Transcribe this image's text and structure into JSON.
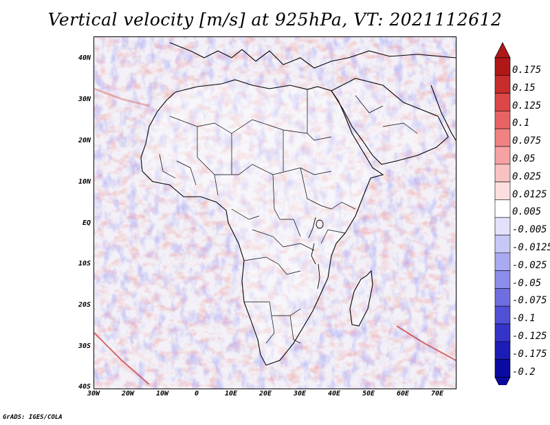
{
  "title": "Vertical velocity [m/s] at 925hPa, VT: 2021112612",
  "credit": "GrADS: IGES/COLA",
  "map": {
    "lat_labels": [
      "40N",
      "30N",
      "20N",
      "10N",
      "EQ",
      "10S",
      "20S",
      "30S",
      "40S"
    ],
    "lon_labels": [
      "30W",
      "20W",
      "10W",
      "0",
      "10E",
      "20E",
      "30E",
      "40E",
      "50E",
      "60E",
      "70E"
    ],
    "lat_range": [
      -40,
      45
    ],
    "lon_range": [
      -30,
      75
    ]
  },
  "colorbar": {
    "labels": [
      "0.175",
      "0.15",
      "0.125",
      "0.1",
      "0.075",
      "0.05",
      "0.025",
      "0.0125",
      "0.005",
      "-0.005",
      "-0.0125",
      "-0.025",
      "-0.05",
      "-0.075",
      "-0.1",
      "-0.125",
      "-0.175",
      "-0.2"
    ],
    "colors": [
      "#b01818",
      "#c82c2c",
      "#dc4646",
      "#e86464",
      "#f08282",
      "#f6a2a2",
      "#f9c2c2",
      "#fcdede",
      "#ffffff",
      "#e2e2fc",
      "#c8c8f8",
      "#aaaaf2",
      "#8c8cea",
      "#6e6ee0",
      "#5050d6",
      "#3434c8",
      "#1c1cb6",
      "#0a0aa2"
    ]
  }
}
